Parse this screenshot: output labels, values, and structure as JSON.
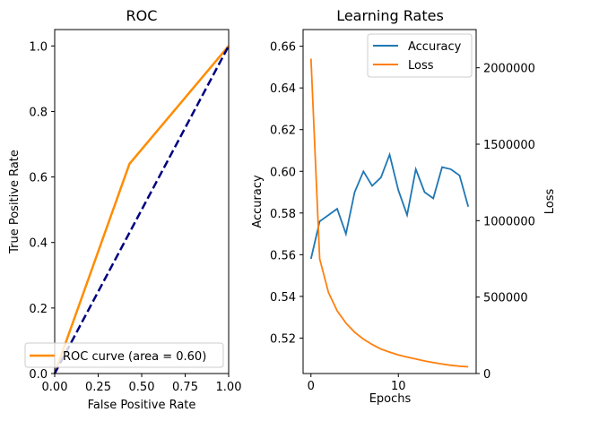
{
  "chart_data": [
    {
      "type": "line",
      "title": "ROC",
      "xlabel": "False Positive Rate",
      "ylabel": "True Positive Rate",
      "xlim": [
        0.0,
        1.0
      ],
      "ylim": [
        0.0,
        1.05
      ],
      "xticks": [
        "0.00",
        "0.25",
        "0.50",
        "0.75",
        "1.00"
      ],
      "xtick_values": [
        0,
        0.25,
        0.5,
        0.75,
        1.0
      ],
      "yticks": [
        "0.0",
        "0.2",
        "0.4",
        "0.6",
        "0.8",
        "1.0"
      ],
      "ytick_values": [
        0,
        0.2,
        0.4,
        0.6,
        0.8,
        1.0
      ],
      "legend_position": "lower-right",
      "series": [
        {
          "name": "ROC curve (area = 0.60)",
          "color": "#ff8c00",
          "style": "solid",
          "x": [
            0.0,
            0.43,
            1.0
          ],
          "y": [
            0.0,
            0.64,
            1.0
          ]
        },
        {
          "color": "#000080",
          "style": "dashed",
          "x": [
            0.0,
            1.0
          ],
          "y": [
            0.0,
            1.0
          ]
        }
      ]
    },
    {
      "type": "line",
      "title": "Learning Rates",
      "xlabel": "Epochs",
      "ylabel": "Accuracy",
      "y2label": "Loss",
      "xlim": [
        -0.9,
        18.9
      ],
      "ylim": [
        0.503,
        0.668
      ],
      "y2lim": [
        0,
        2250000
      ],
      "xticks": [
        "0",
        "10"
      ],
      "xtick_values": [
        0,
        10
      ],
      "yticks": [
        "0.52",
        "0.54",
        "0.56",
        "0.58",
        "0.60",
        "0.62",
        "0.64",
        "0.66"
      ],
      "ytick_values": [
        0.52,
        0.54,
        0.56,
        0.58,
        0.6,
        0.62,
        0.64,
        0.66
      ],
      "y2ticks": [
        "0",
        "500000",
        "1000000",
        "1500000",
        "2000000"
      ],
      "y2tick_values": [
        0,
        500000,
        1000000,
        1500000,
        2000000
      ],
      "legend_position": "top-right",
      "series": [
        {
          "name": "Accuracy",
          "axis": "left",
          "color": "#1f77b4",
          "x": [
            0,
            1,
            2,
            3,
            4,
            5,
            6,
            7,
            8,
            9,
            10,
            11,
            12,
            13,
            14,
            15,
            16,
            17,
            18
          ],
          "y": [
            0.558,
            0.576,
            0.579,
            0.582,
            0.57,
            0.59,
            0.6,
            0.593,
            0.597,
            0.608,
            0.591,
            0.579,
            0.601,
            0.59,
            0.587,
            0.602,
            0.601,
            0.598,
            0.583
          ]
        },
        {
          "name": "Loss",
          "axis": "right",
          "color": "#ff7f0e",
          "x": [
            0,
            1,
            2,
            3,
            4,
            5,
            6,
            7,
            8,
            9,
            10,
            11,
            12,
            13,
            14,
            15,
            16,
            17,
            18
          ],
          "y": [
            2060000,
            750000,
            530000,
            410000,
            330000,
            270000,
            225000,
            190000,
            160000,
            140000,
            122000,
            108000,
            95000,
            82000,
            72000,
            62000,
            54000,
            48000,
            44000
          ]
        }
      ]
    }
  ]
}
